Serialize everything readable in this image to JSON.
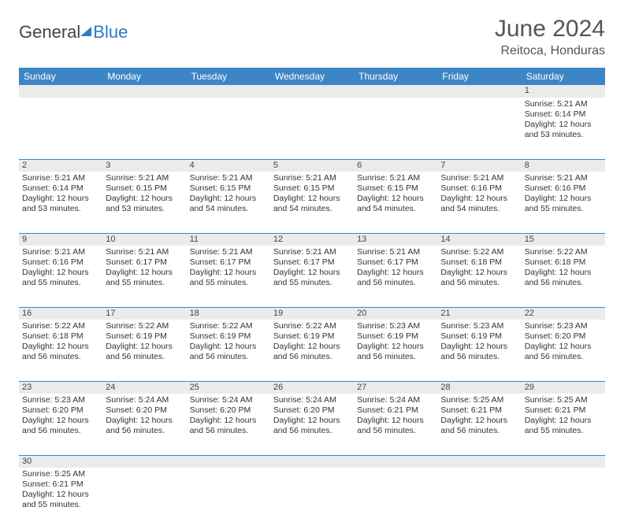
{
  "logo": {
    "part1": "General",
    "part2": "Blue"
  },
  "title": "June 2024",
  "location": "Reitoca, Honduras",
  "header_bg": "#3d86c6",
  "daynum_bg": "#ebebeb",
  "border_color": "#3d86c6",
  "days": [
    "Sunday",
    "Monday",
    "Tuesday",
    "Wednesday",
    "Thursday",
    "Friday",
    "Saturday"
  ],
  "weeks": [
    [
      null,
      null,
      null,
      null,
      null,
      null,
      {
        "n": "1",
        "sr": "5:21 AM",
        "ss": "6:14 PM",
        "dl": "12 hours and 53 minutes."
      }
    ],
    [
      {
        "n": "2",
        "sr": "5:21 AM",
        "ss": "6:14 PM",
        "dl": "12 hours and 53 minutes."
      },
      {
        "n": "3",
        "sr": "5:21 AM",
        "ss": "6:15 PM",
        "dl": "12 hours and 53 minutes."
      },
      {
        "n": "4",
        "sr": "5:21 AM",
        "ss": "6:15 PM",
        "dl": "12 hours and 54 minutes."
      },
      {
        "n": "5",
        "sr": "5:21 AM",
        "ss": "6:15 PM",
        "dl": "12 hours and 54 minutes."
      },
      {
        "n": "6",
        "sr": "5:21 AM",
        "ss": "6:15 PM",
        "dl": "12 hours and 54 minutes."
      },
      {
        "n": "7",
        "sr": "5:21 AM",
        "ss": "6:16 PM",
        "dl": "12 hours and 54 minutes."
      },
      {
        "n": "8",
        "sr": "5:21 AM",
        "ss": "6:16 PM",
        "dl": "12 hours and 55 minutes."
      }
    ],
    [
      {
        "n": "9",
        "sr": "5:21 AM",
        "ss": "6:16 PM",
        "dl": "12 hours and 55 minutes."
      },
      {
        "n": "10",
        "sr": "5:21 AM",
        "ss": "6:17 PM",
        "dl": "12 hours and 55 minutes."
      },
      {
        "n": "11",
        "sr": "5:21 AM",
        "ss": "6:17 PM",
        "dl": "12 hours and 55 minutes."
      },
      {
        "n": "12",
        "sr": "5:21 AM",
        "ss": "6:17 PM",
        "dl": "12 hours and 55 minutes."
      },
      {
        "n": "13",
        "sr": "5:21 AM",
        "ss": "6:17 PM",
        "dl": "12 hours and 56 minutes."
      },
      {
        "n": "14",
        "sr": "5:22 AM",
        "ss": "6:18 PM",
        "dl": "12 hours and 56 minutes."
      },
      {
        "n": "15",
        "sr": "5:22 AM",
        "ss": "6:18 PM",
        "dl": "12 hours and 56 minutes."
      }
    ],
    [
      {
        "n": "16",
        "sr": "5:22 AM",
        "ss": "6:18 PM",
        "dl": "12 hours and 56 minutes."
      },
      {
        "n": "17",
        "sr": "5:22 AM",
        "ss": "6:19 PM",
        "dl": "12 hours and 56 minutes."
      },
      {
        "n": "18",
        "sr": "5:22 AM",
        "ss": "6:19 PM",
        "dl": "12 hours and 56 minutes."
      },
      {
        "n": "19",
        "sr": "5:22 AM",
        "ss": "6:19 PM",
        "dl": "12 hours and 56 minutes."
      },
      {
        "n": "20",
        "sr": "5:23 AM",
        "ss": "6:19 PM",
        "dl": "12 hours and 56 minutes."
      },
      {
        "n": "21",
        "sr": "5:23 AM",
        "ss": "6:19 PM",
        "dl": "12 hours and 56 minutes."
      },
      {
        "n": "22",
        "sr": "5:23 AM",
        "ss": "6:20 PM",
        "dl": "12 hours and 56 minutes."
      }
    ],
    [
      {
        "n": "23",
        "sr": "5:23 AM",
        "ss": "6:20 PM",
        "dl": "12 hours and 56 minutes."
      },
      {
        "n": "24",
        "sr": "5:24 AM",
        "ss": "6:20 PM",
        "dl": "12 hours and 56 minutes."
      },
      {
        "n": "25",
        "sr": "5:24 AM",
        "ss": "6:20 PM",
        "dl": "12 hours and 56 minutes."
      },
      {
        "n": "26",
        "sr": "5:24 AM",
        "ss": "6:20 PM",
        "dl": "12 hours and 56 minutes."
      },
      {
        "n": "27",
        "sr": "5:24 AM",
        "ss": "6:21 PM",
        "dl": "12 hours and 56 minutes."
      },
      {
        "n": "28",
        "sr": "5:25 AM",
        "ss": "6:21 PM",
        "dl": "12 hours and 56 minutes."
      },
      {
        "n": "29",
        "sr": "5:25 AM",
        "ss": "6:21 PM",
        "dl": "12 hours and 55 minutes."
      }
    ],
    [
      {
        "n": "30",
        "sr": "5:25 AM",
        "ss": "6:21 PM",
        "dl": "12 hours and 55 minutes."
      },
      null,
      null,
      null,
      null,
      null,
      null
    ]
  ],
  "labels": {
    "sunrise": "Sunrise:",
    "sunset": "Sunset:",
    "daylight": "Daylight:"
  }
}
